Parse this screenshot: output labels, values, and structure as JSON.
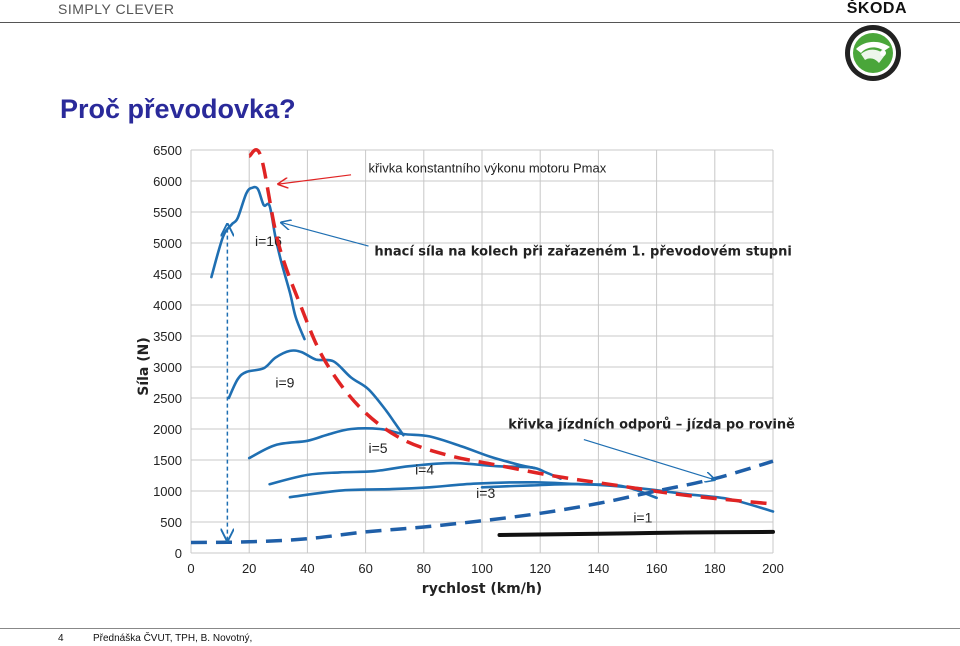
{
  "header": {
    "brand_left": "SIMPLY CLEVER",
    "brand_right": "ŠKODA"
  },
  "title": "Proč převodovka?",
  "footer": {
    "page_number": "4",
    "text": "Přednáška ČVUT, TPH, B. Novotný,"
  },
  "colors": {
    "gear_curves": "#1f6fb2",
    "power_curve": "#e02424",
    "resistance_curve": "#1f5fa8",
    "title": "#2a2a9a",
    "logo": "#4aa63a"
  },
  "chart_data": {
    "type": "line",
    "xlabel": "rychlost (km/h)",
    "ylabel": "Síla (N)",
    "xlim": [
      0,
      200
    ],
    "ylim": [
      0,
      6500
    ],
    "x_ticks": [
      "0",
      "20",
      "40",
      "60",
      "80",
      "100",
      "120",
      "140",
      "160",
      "180",
      "200"
    ],
    "y_ticks": [
      "0",
      "500",
      "1000",
      "1500",
      "2000",
      "2500",
      "3000",
      "3500",
      "4000",
      "4500",
      "5000",
      "5500",
      "6000",
      "6500"
    ],
    "grid": true,
    "series": [
      {
        "name": "i=16",
        "style": "solid",
        "color": "#1f6fb2",
        "label_xy": [
          22,
          4950
        ],
        "points": [
          [
            7,
            4450
          ],
          [
            11,
            5100
          ],
          [
            14,
            5300
          ],
          [
            16,
            5400
          ],
          [
            19,
            5800
          ],
          [
            21,
            5890
          ],
          [
            23,
            5870
          ],
          [
            25,
            5610
          ],
          [
            27,
            5600
          ],
          [
            29,
            5100
          ],
          [
            31,
            4700
          ],
          [
            34,
            4200
          ],
          [
            36,
            3800
          ],
          [
            39,
            3450
          ]
        ]
      },
      {
        "name": "i=9",
        "style": "solid",
        "color": "#1f6fb2",
        "label_xy": [
          29,
          2670
        ],
        "points": [
          [
            13,
            2500
          ],
          [
            16,
            2800
          ],
          [
            19,
            2920
          ],
          [
            25,
            2980
          ],
          [
            29,
            3150
          ],
          [
            34,
            3260
          ],
          [
            38,
            3240
          ],
          [
            43,
            3120
          ],
          [
            49,
            3090
          ],
          [
            55,
            2830
          ],
          [
            61,
            2640
          ],
          [
            67,
            2300
          ],
          [
            70,
            2100
          ],
          [
            73,
            1900
          ]
        ]
      },
      {
        "name": "i=5",
        "style": "solid",
        "color": "#1f6fb2",
        "label_xy": [
          61,
          1610
        ],
        "points": [
          [
            20,
            1530
          ],
          [
            29,
            1740
          ],
          [
            40,
            1810
          ],
          [
            47,
            1910
          ],
          [
            55,
            2000
          ],
          [
            65,
            2000
          ],
          [
            73,
            1920
          ],
          [
            82,
            1880
          ],
          [
            93,
            1720
          ],
          [
            103,
            1550
          ],
          [
            113,
            1420
          ],
          [
            118,
            1370
          ]
        ]
      },
      {
        "name": "i=4",
        "style": "solid",
        "color": "#1f6fb2",
        "label_xy": [
          77,
          1270
        ],
        "points": [
          [
            27,
            1110
          ],
          [
            40,
            1260
          ],
          [
            51,
            1300
          ],
          [
            63,
            1320
          ],
          [
            75,
            1400
          ],
          [
            90,
            1450
          ],
          [
            105,
            1400
          ],
          [
            117,
            1380
          ],
          [
            122,
            1300
          ],
          [
            127,
            1200
          ]
        ]
      },
      {
        "name": "i=3",
        "style": "solid",
        "color": "#1f6fb2",
        "label_xy": [
          98,
          890
        ],
        "points": [
          [
            34,
            900
          ],
          [
            52,
            1010
          ],
          [
            69,
            1030
          ],
          [
            82,
            1060
          ],
          [
            98,
            1120
          ],
          [
            118,
            1140
          ],
          [
            133,
            1110
          ],
          [
            148,
            1080
          ],
          [
            160,
            890
          ]
        ]
      },
      {
        "name": "i=1",
        "style": "solid",
        "color": "#1f6fb2",
        "label_xy": [
          152,
          490
        ],
        "points": [
          [
            100,
            1060
          ],
          [
            117,
            1090
          ],
          [
            135,
            1110
          ],
          [
            155,
            1040
          ],
          [
            170,
            950
          ],
          [
            185,
            870
          ],
          [
            200,
            670
          ]
        ]
      },
      {
        "name": "Pmax",
        "style": "dashed",
        "color": "#e02424",
        "label_xy": null,
        "points": [
          [
            20,
            6400
          ],
          [
            24,
            6400
          ],
          [
            30,
            5000
          ],
          [
            38,
            3950
          ],
          [
            46,
            3100
          ],
          [
            58,
            2350
          ],
          [
            72,
            1850
          ],
          [
            88,
            1580
          ],
          [
            105,
            1420
          ],
          [
            125,
            1240
          ],
          [
            145,
            1100
          ],
          [
            170,
            930
          ],
          [
            200,
            790
          ]
        ]
      },
      {
        "name": "odpor",
        "style": "dashed",
        "color": "#1f5fa8",
        "label_xy": null,
        "points": [
          [
            0,
            170
          ],
          [
            20,
            180
          ],
          [
            40,
            230
          ],
          [
            60,
            340
          ],
          [
            80,
            420
          ],
          [
            100,
            520
          ],
          [
            120,
            640
          ],
          [
            140,
            800
          ],
          [
            160,
            1000
          ],
          [
            180,
            1200
          ],
          [
            200,
            1480
          ]
        ]
      },
      {
        "name": "valivy",
        "style": "solid-thick",
        "color": "#111111",
        "label_xy": null,
        "points": [
          [
            106,
            290
          ],
          [
            140,
            310
          ],
          [
            170,
            330
          ],
          [
            200,
            340
          ]
        ]
      }
    ],
    "annotations": [
      {
        "text": "křivka konstantního výkonu motoru Pmax",
        "text_xy": [
          61,
          6140
        ],
        "arrow_from": [
          55,
          6100
        ],
        "arrow_to": [
          30,
          5950
        ]
      },
      {
        "text": "hnací síla na kolech při zařazeném 1. převodovém stupni",
        "text_xy": [
          63,
          4800
        ],
        "arrow_from": [
          61,
          4950
        ],
        "arrow_to": [
          31,
          5330
        ]
      },
      {
        "text": "křivka jízdních odporů – jízda po rovině",
        "text_xy": [
          109,
          2010
        ],
        "arrow_from": [
          135,
          1830
        ],
        "arrow_to": [
          180,
          1180
        ]
      }
    ],
    "vertical_arrow": {
      "x": 12.5,
      "from": 200,
      "to": 5300
    }
  }
}
